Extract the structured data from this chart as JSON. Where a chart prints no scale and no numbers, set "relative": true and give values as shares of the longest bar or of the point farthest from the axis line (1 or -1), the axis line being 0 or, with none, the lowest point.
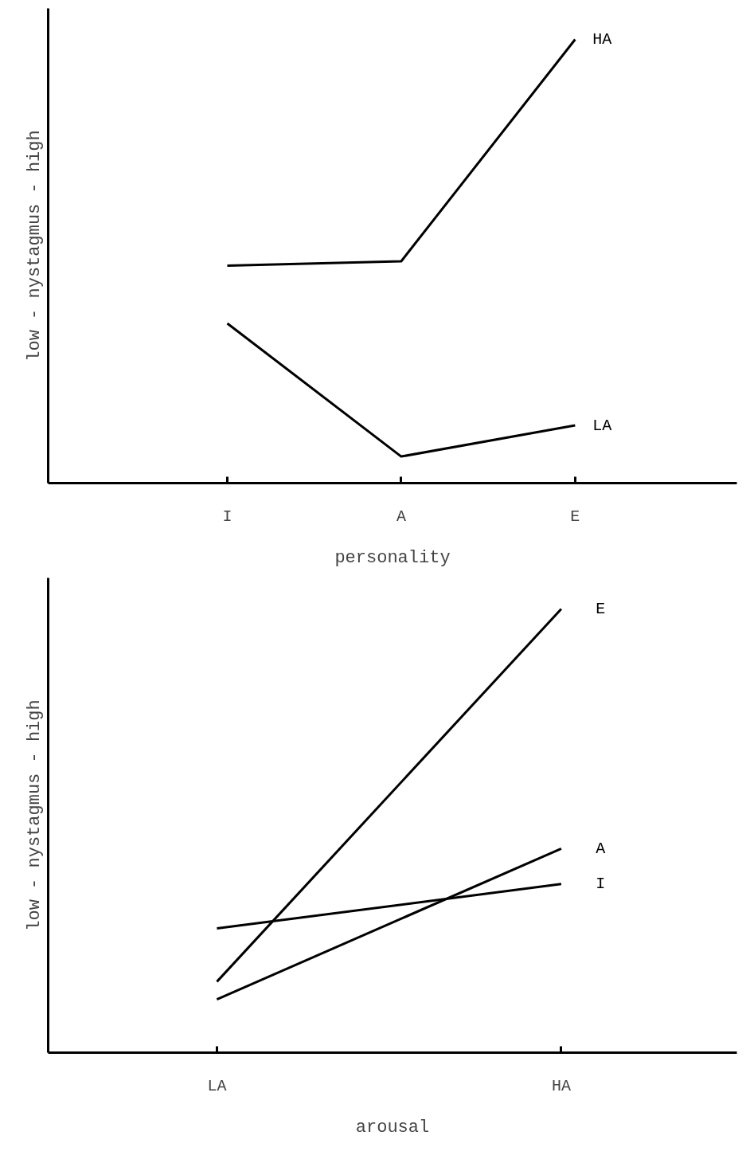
{
  "chart_data": [
    {
      "type": "line",
      "relative": true,
      "xlabel": "personality",
      "ylabel": "low - nystagmus - high",
      "categories": [
        "I",
        "A",
        "E"
      ],
      "series": [
        {
          "name": "HA",
          "color": "#000000",
          "values": [
            0.49,
            0.5,
            1
          ]
        },
        {
          "name": "LA",
          "color": "#000000",
          "values": [
            0.36,
            0.06,
            0.13
          ]
        }
      ]
    },
    {
      "type": "line",
      "relative": true,
      "xlabel": "arousal",
      "ylabel": "low - nystagmus - high",
      "categories": [
        "LA",
        "HA"
      ],
      "series": [
        {
          "name": "E",
          "color": "#000000",
          "values": [
            0.16,
            1
          ]
        },
        {
          "name": "A",
          "color": "#000000",
          "values": [
            0.12,
            0.46
          ]
        },
        {
          "name": "I",
          "color": "#000000",
          "values": [
            0.28,
            0.38
          ]
        }
      ]
    }
  ]
}
